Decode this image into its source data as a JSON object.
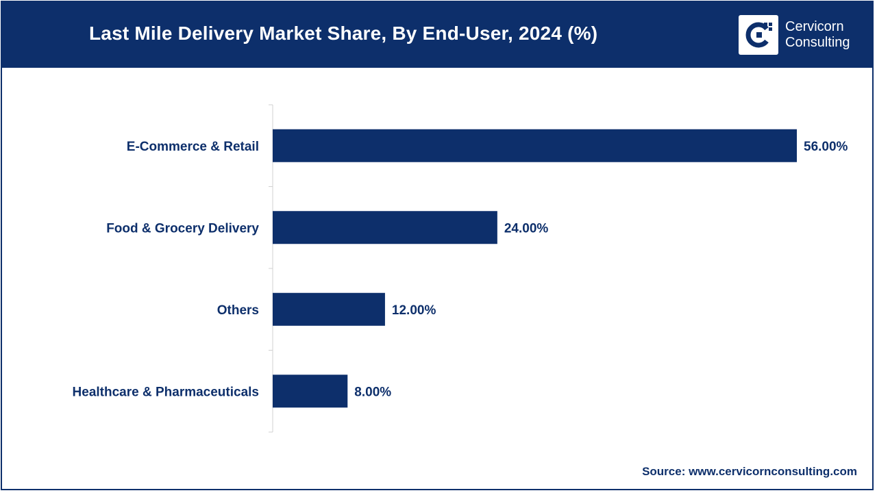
{
  "header": {
    "title": "Last Mile Delivery Market Share, By End-User, 2024 (%)",
    "logo_line1": "Cervicorn",
    "logo_line2": "Consulting"
  },
  "source": "Source: www.cervicornconsulting.com",
  "colors": {
    "brand": "#0d2f6b",
    "bar": "#0d2f6b",
    "axis": "#d0d0d0"
  },
  "chart_data": {
    "type": "bar",
    "orientation": "horizontal",
    "title": "Last Mile Delivery Market Share, By End-User, 2024 (%)",
    "categories": [
      "E-Commerce & Retail",
      "Food & Grocery Delivery",
      "Others",
      "Healthcare & Pharmaceuticals"
    ],
    "values": [
      56,
      24,
      12,
      8
    ],
    "value_labels": [
      "56.00%",
      "24.00%",
      "12.00%",
      "8.00%"
    ],
    "xlim": [
      0,
      56
    ],
    "grid": false,
    "legend": "none"
  }
}
